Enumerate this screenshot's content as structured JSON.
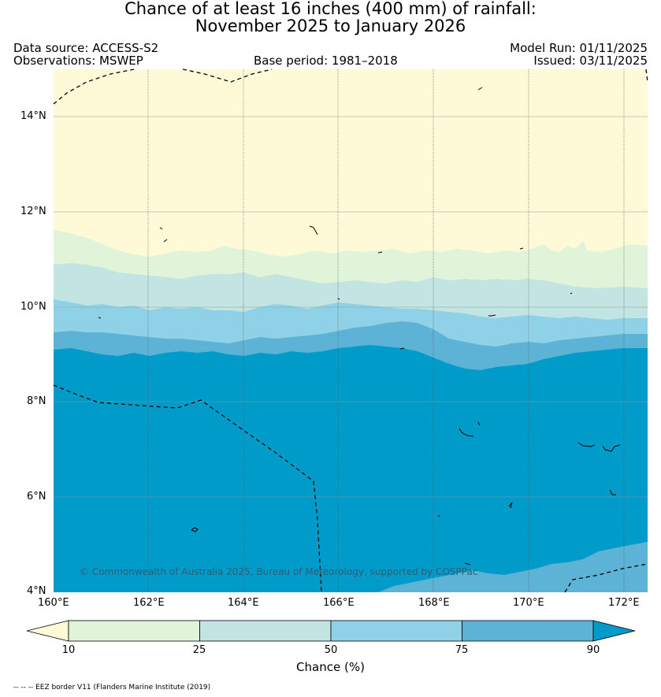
{
  "title_line1": "Chance of at least 16 inches (400  mm) of rainfall:",
  "title_line2": "November 2025 to January 2026",
  "data_source": "Data source: ACCESS-S2",
  "observations": "Observations: MSWEP",
  "base_period": "Base period: 1981–2018",
  "model_run": "Model Run: 01/11/2025",
  "issued": "Issued: 03/11/2025",
  "copyright": "© Commonwealth of Australia 2025, Bureau of Meteorology, supported by COSPPac",
  "footnote": "-- -- -- EEZ border V11 (Flanders Marine Institute (2019)",
  "axes": {
    "x_ticks": [
      "160°E",
      "162°E",
      "164°E",
      "166°E",
      "168°E",
      "170°E",
      "172°E"
    ],
    "y_ticks": [
      "14°N",
      "12°N",
      "10°N",
      "8°N",
      "6°N",
      "4°N"
    ],
    "lon_range": [
      160,
      172.5
    ],
    "lat_range": [
      4,
      15
    ]
  },
  "colorbar": {
    "label": "Chance (%)",
    "tick_labels": [
      "10",
      "25",
      "50",
      "75",
      "90"
    ],
    "colors": [
      "#fef9d6",
      "#dff4d8",
      "#c2e4e3",
      "#8fd2e8",
      "#5db3d6",
      "#009bc9"
    ]
  }
}
